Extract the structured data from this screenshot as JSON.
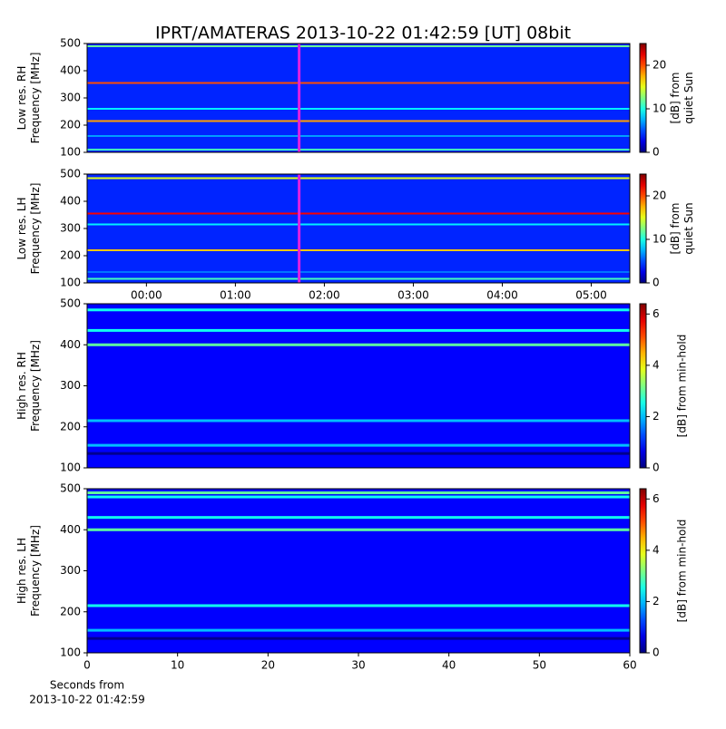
{
  "title": "IPRT/AMATERAS 2013-10-22 01:42:59 [UT]   08bit",
  "chart_data": [
    {
      "type": "heatmap",
      "ylabel": [
        "Low res. RH",
        "Frequency [MHz]"
      ],
      "colorbar_label": [
        "[dB] from",
        "quiet Sun"
      ],
      "colormap": "jet",
      "xlim": [
        "23:20",
        "05:26"
      ],
      "ylim": [
        100,
        500
      ],
      "yticks": [
        100,
        200,
        300,
        400,
        500
      ],
      "clim": [
        0,
        25
      ],
      "cticks": [
        0,
        10,
        20
      ],
      "cursor_time": "01:42:59",
      "cursor_color": "#e020e0",
      "background": 4,
      "bands": [
        {
          "freq": 490,
          "value": 12
        },
        {
          "freq": 355,
          "value": 20
        },
        {
          "freq": 260,
          "value": 9
        },
        {
          "freq": 215,
          "value": 18
        },
        {
          "freq": 160,
          "value": 7
        },
        {
          "freq": 110,
          "value": 11
        }
      ]
    },
    {
      "type": "heatmap",
      "ylabel": [
        "Low res. LH",
        "Frequency [MHz]"
      ],
      "colorbar_label": [
        "[dB] from",
        "quiet Sun"
      ],
      "colormap": "jet",
      "xlim": [
        "23:20",
        "05:26"
      ],
      "xticks": [
        "00:00",
        "01:00",
        "02:00",
        "03:00",
        "04:00",
        "05:00"
      ],
      "ylim": [
        100,
        500
      ],
      "yticks": [
        100,
        200,
        300,
        400,
        500
      ],
      "clim": [
        0,
        25
      ],
      "cticks": [
        0,
        10,
        20
      ],
      "cursor_time": "01:42:59",
      "cursor_color": "#e020e0",
      "background": 4,
      "bands": [
        {
          "freq": 485,
          "value": 15
        },
        {
          "freq": 355,
          "value": 22
        },
        {
          "freq": 315,
          "value": 9
        },
        {
          "freq": 220,
          "value": 17
        },
        {
          "freq": 140,
          "value": 6
        },
        {
          "freq": 115,
          "value": 11
        }
      ]
    },
    {
      "type": "heatmap",
      "ylabel": [
        "High res. RH",
        "Frequency [MHz]"
      ],
      "colorbar_label": [
        "[dB] from min-hold"
      ],
      "colormap": "jet",
      "xlim": [
        0,
        60
      ],
      "ylim": [
        100,
        500
      ],
      "yticks": [
        100,
        200,
        300,
        400,
        500
      ],
      "clim": [
        0,
        6.4
      ],
      "cticks": [
        0,
        2,
        4,
        6
      ],
      "background": 0.8,
      "bands": [
        {
          "freq": 485,
          "value": 2.5
        },
        {
          "freq": 435,
          "value": 2.5
        },
        {
          "freq": 400,
          "value": 3
        },
        {
          "freq": 215,
          "value": 2
        },
        {
          "freq": 155,
          "value": 2
        },
        {
          "freq": 135,
          "value": 0.1
        }
      ]
    },
    {
      "type": "heatmap",
      "ylabel": [
        "High res. LH",
        "Frequency [MHz]"
      ],
      "colorbar_label": [
        "[dB] from min-hold"
      ],
      "colormap": "jet",
      "xlim": [
        0,
        60
      ],
      "xticks": [
        0,
        10,
        20,
        30,
        40,
        50,
        60
      ],
      "xlabel": [
        "Seconds from",
        "2013-10-22 01:42:59"
      ],
      "ylim": [
        100,
        500
      ],
      "yticks": [
        100,
        200,
        300,
        400,
        500
      ],
      "clim": [
        0,
        6.4
      ],
      "cticks": [
        0,
        2,
        4,
        6
      ],
      "background": 0.8,
      "bands": [
        {
          "freq": 490,
          "value": 3
        },
        {
          "freq": 480,
          "value": 2.5
        },
        {
          "freq": 430,
          "value": 2.5
        },
        {
          "freq": 400,
          "value": 3
        },
        {
          "freq": 215,
          "value": 2.5
        },
        {
          "freq": 155,
          "value": 2
        },
        {
          "freq": 135,
          "value": 0.1
        }
      ]
    }
  ]
}
